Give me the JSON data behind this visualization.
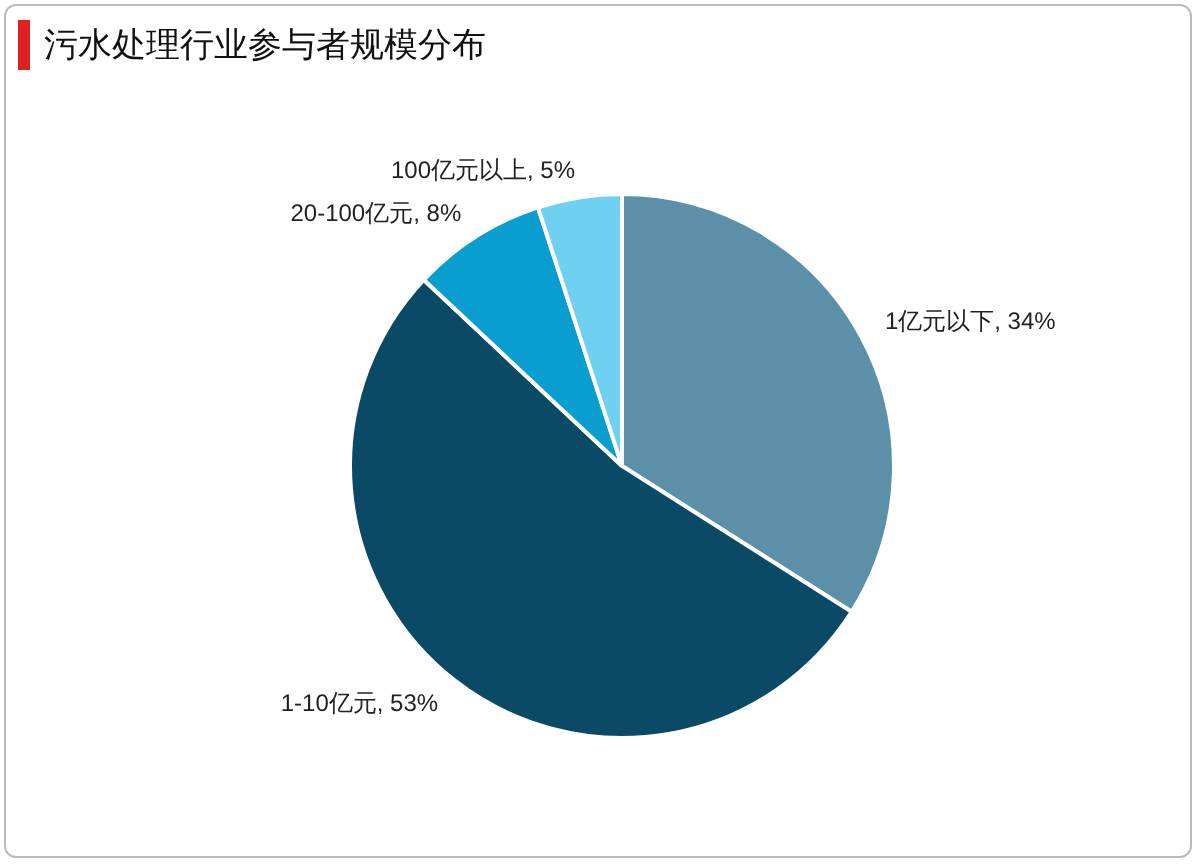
{
  "chart_data": {
    "type": "pie",
    "title": "污水处理行业参与者规模分布",
    "categories": [
      "1亿元以下",
      "1-10亿元",
      "20-100亿元",
      "100亿元以上"
    ],
    "values": [
      34,
      53,
      8,
      5
    ],
    "value_labels": [
      "34%",
      "53%",
      "8%",
      "5%"
    ],
    "colors": [
      "#5b90a8",
      "#0b4a66",
      "#0a9dd0",
      "#70d0f2"
    ],
    "legend": false
  }
}
